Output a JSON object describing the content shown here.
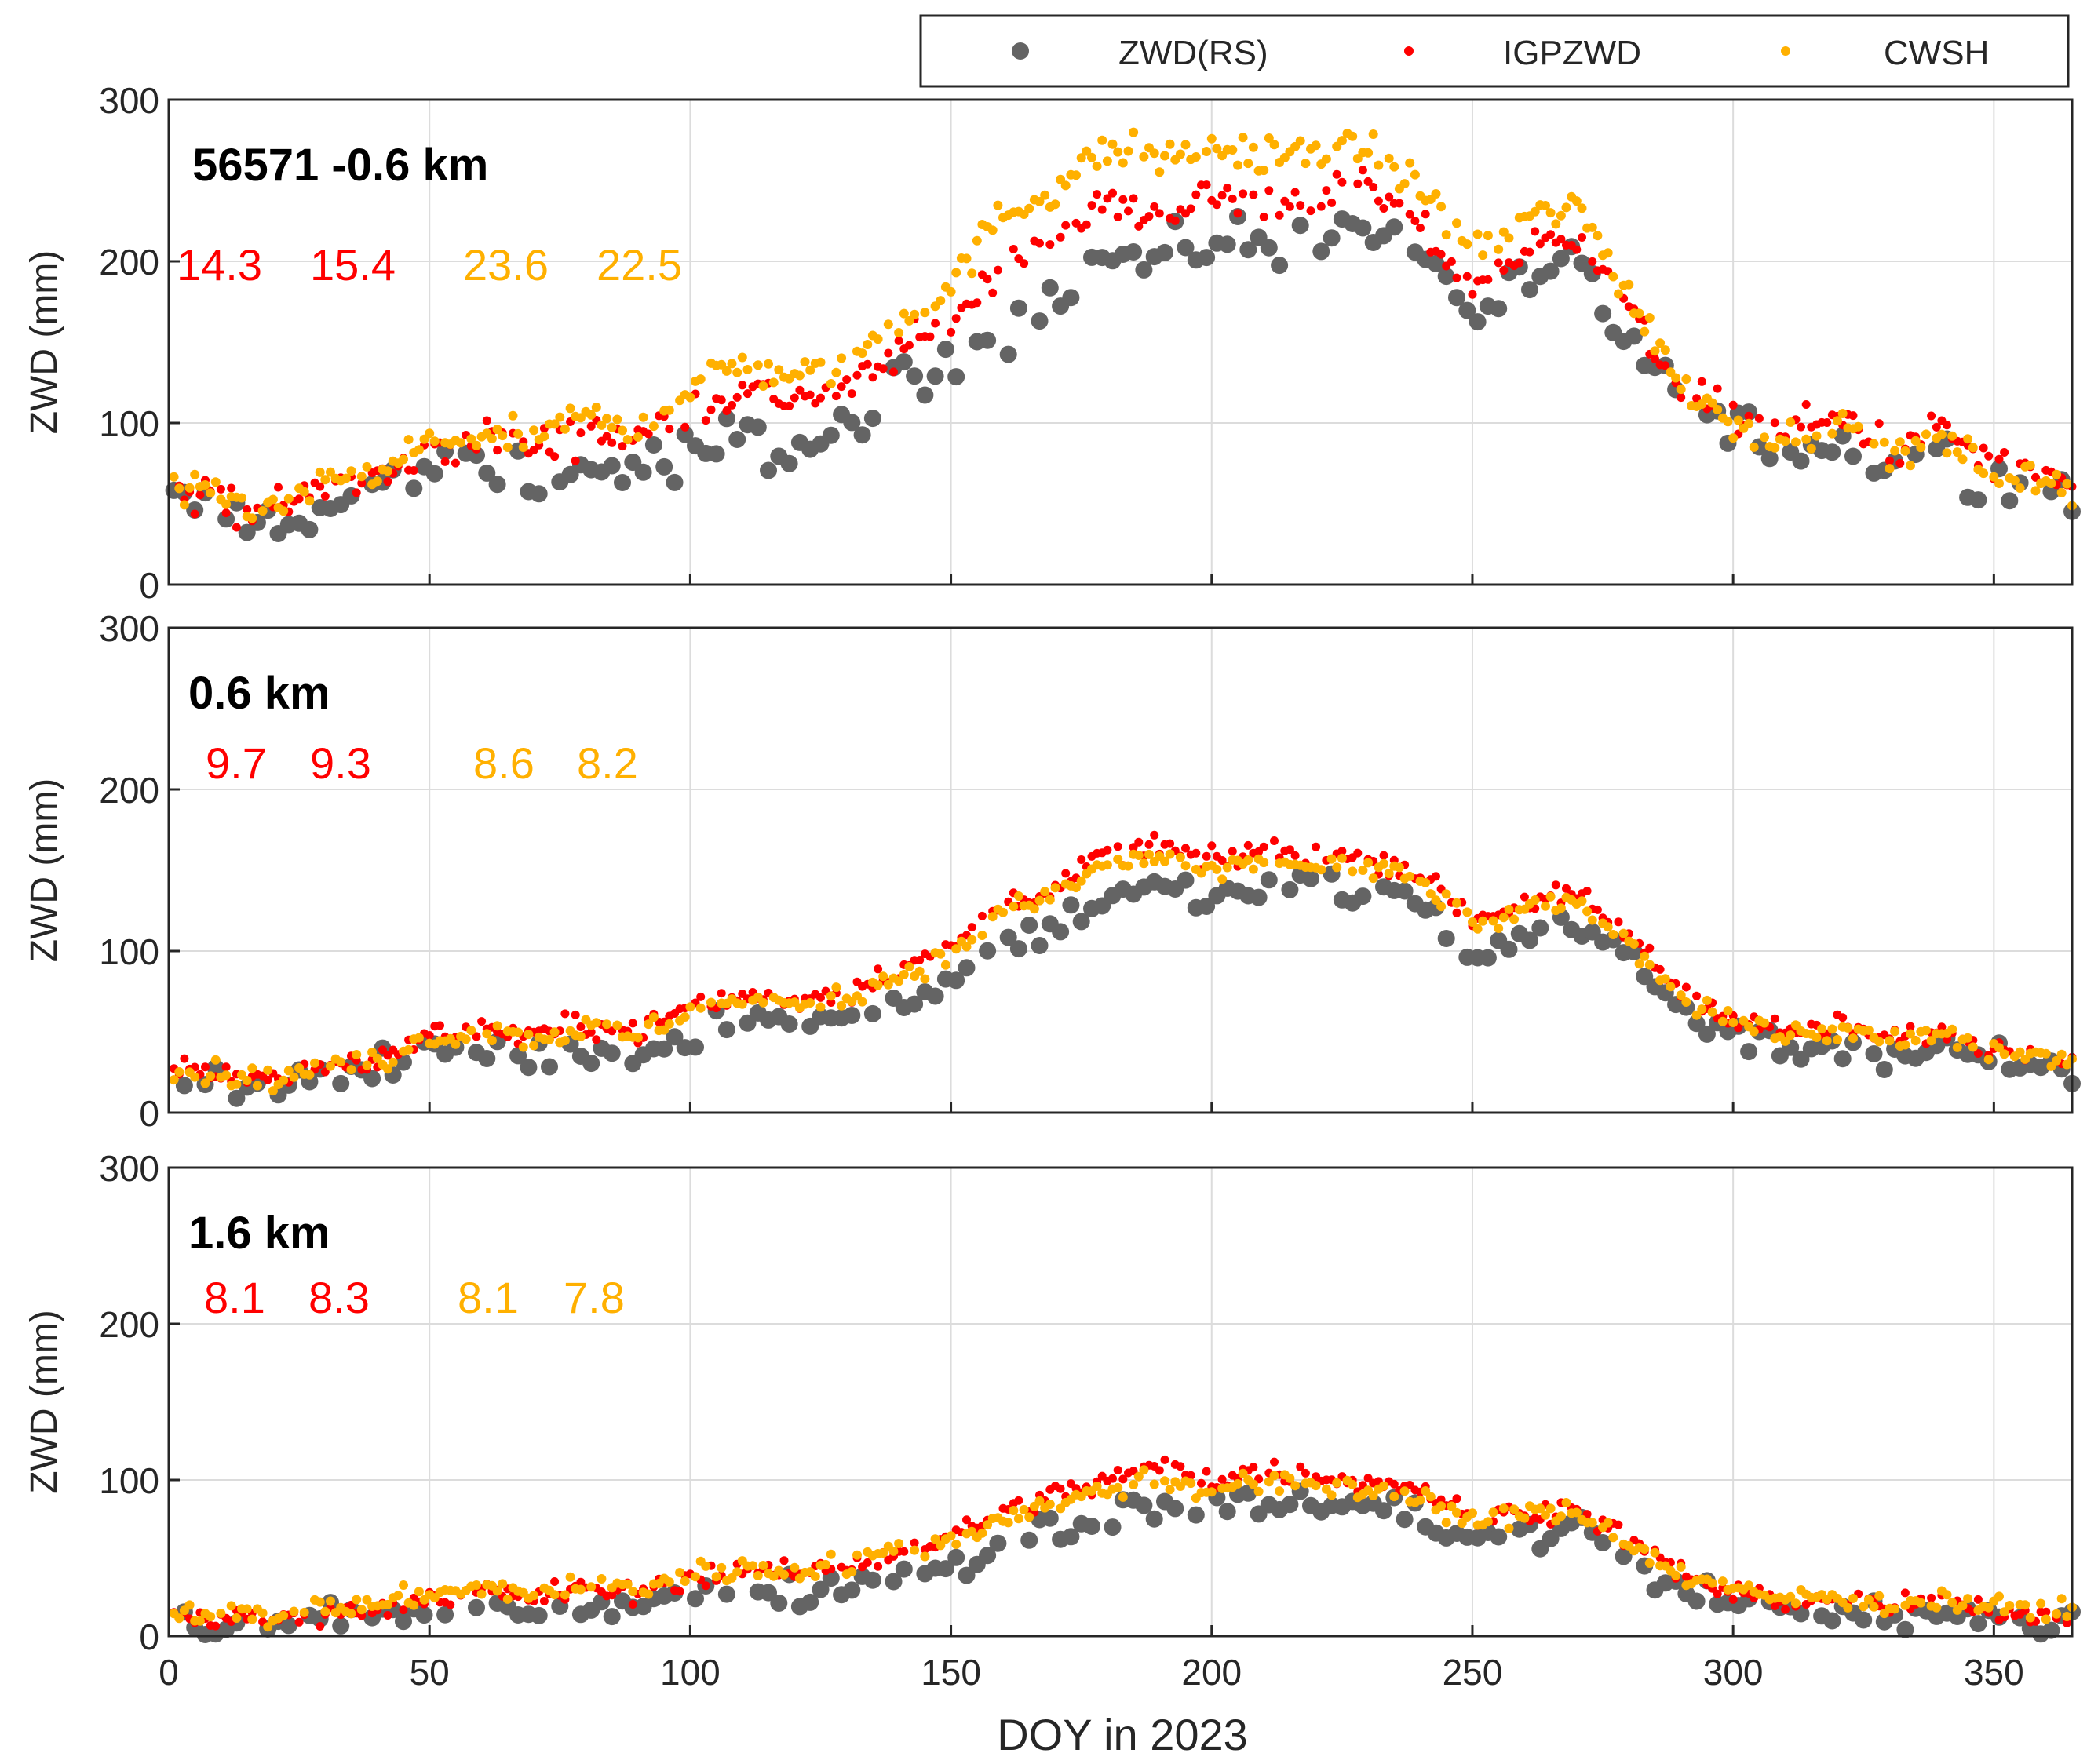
{
  "colors": {
    "rs": "#646464",
    "igp": "#ff0000",
    "cwsh": "#ffb000",
    "grid": "#dcdcdc",
    "axis": "#262626",
    "text": "#262626",
    "stats_igp": "#ff0000",
    "stats_cwsh": "#ffb000"
  },
  "legend": {
    "items": [
      {
        "label": "ZWD(RS)",
        "marker": "large-dot",
        "color": "#646464"
      },
      {
        "label": "IGPZWD",
        "marker": "small-dot",
        "color": "#ff0000"
      },
      {
        "label": "CWSH",
        "marker": "small-dot",
        "color": "#ffb000"
      }
    ]
  },
  "xaxis": {
    "label": "DOY in 2023",
    "range": [
      0,
      365
    ],
    "ticks": [
      0,
      50,
      100,
      150,
      200,
      250,
      300,
      350
    ],
    "tick_labels": [
      "0",
      "50",
      "100",
      "150",
      "200",
      "250",
      "300",
      "350"
    ]
  },
  "chart_data": [
    {
      "type": "scatter",
      "title": "56571 -0.6 km",
      "ylabel": "ZWD (mm)",
      "ylim": [
        0,
        300
      ],
      "yticks": [
        0,
        100,
        200,
        300
      ],
      "ytick_labels": [
        "0",
        "100",
        "200",
        "300"
      ],
      "stats": {
        "igp": [
          "14.3",
          "15.4"
        ],
        "cwsh": [
          "23.6",
          "22.5"
        ]
      },
      "x": [
        0,
        10,
        20,
        30,
        40,
        50,
        60,
        70,
        80,
        90,
        100,
        110,
        120,
        130,
        140,
        150,
        160,
        170,
        180,
        190,
        200,
        210,
        220,
        230,
        240,
        250,
        260,
        270,
        280,
        290,
        300,
        310,
        320,
        330,
        340,
        350,
        365
      ],
      "series": [
        {
          "name": "ZWD(RS)",
          "values": [
            50,
            45,
            38,
            48,
            55,
            70,
            75,
            65,
            70,
            72,
            80,
            90,
            85,
            95,
            120,
            135,
            160,
            180,
            205,
            200,
            215,
            210,
            220,
            225,
            205,
            170,
            185,
            195,
            150,
            110,
            95,
            85,
            90,
            75,
            80,
            65,
            55
          ]
        },
        {
          "name": "IGPZWD",
          "values": [
            55,
            52,
            45,
            60,
            65,
            80,
            90,
            85,
            95,
            90,
            110,
            120,
            115,
            120,
            145,
            160,
            200,
            215,
            235,
            230,
            240,
            235,
            240,
            245,
            220,
            185,
            205,
            220,
            170,
            120,
            105,
            95,
            105,
            85,
            95,
            75,
            65
          ]
        },
        {
          "name": "CWSH",
          "values": [
            55,
            55,
            45,
            62,
            68,
            88,
            92,
            90,
            105,
            95,
            125,
            135,
            130,
            135,
            165,
            185,
            230,
            245,
            270,
            265,
            270,
            265,
            270,
            270,
            245,
            205,
            225,
            235,
            180,
            125,
            100,
            90,
            100,
            80,
            90,
            70,
            60
          ]
        }
      ]
    },
    {
      "type": "scatter",
      "title": "0.6 km",
      "ylabel": "ZWD (mm)",
      "ylim": [
        0,
        300
      ],
      "yticks": [
        0,
        100,
        200,
        300
      ],
      "ytick_labels": [
        "0",
        "100",
        "200",
        "300"
      ],
      "stats": {
        "igp": [
          "9.7",
          "9.3"
        ],
        "cwsh": [
          "8.6",
          "8.2"
        ]
      },
      "x": [
        0,
        10,
        20,
        30,
        40,
        50,
        60,
        70,
        80,
        90,
        100,
        110,
        120,
        130,
        140,
        150,
        160,
        170,
        180,
        190,
        200,
        210,
        220,
        230,
        240,
        250,
        260,
        270,
        280,
        290,
        300,
        310,
        320,
        330,
        340,
        350,
        365
      ],
      "series": [
        {
          "name": "ZWD(RS)",
          "values": [
            20,
            18,
            15,
            22,
            25,
            38,
            40,
            35,
            38,
            36,
            50,
            60,
            55,
            58,
            70,
            80,
            105,
            115,
            135,
            140,
            130,
            140,
            140,
            135,
            130,
            100,
            110,
            120,
            95,
            65,
            50,
            40,
            45,
            35,
            40,
            30,
            25
          ]
        },
        {
          "name": "IGPZWD",
          "values": [
            28,
            25,
            20,
            30,
            33,
            48,
            52,
            48,
            55,
            50,
            65,
            72,
            70,
            75,
            90,
            100,
            130,
            140,
            160,
            165,
            155,
            162,
            160,
            158,
            150,
            120,
            130,
            135,
            110,
            75,
            60,
            50,
            55,
            45,
            50,
            40,
            35
          ]
        },
        {
          "name": "CWSH",
          "values": [
            26,
            24,
            20,
            28,
            32,
            46,
            50,
            46,
            52,
            48,
            62,
            70,
            66,
            72,
            86,
            96,
            124,
            134,
            154,
            158,
            148,
            155,
            154,
            150,
            144,
            115,
            125,
            130,
            105,
            72,
            58,
            48,
            52,
            42,
            48,
            38,
            32
          ]
        }
      ]
    },
    {
      "type": "scatter",
      "title": "1.6 km",
      "ylabel": "ZWD (mm)",
      "ylim": [
        0,
        300
      ],
      "yticks": [
        0,
        100,
        200,
        300
      ],
      "ytick_labels": [
        "0",
        "100",
        "200",
        "300"
      ],
      "stats": {
        "igp": [
          "8.1",
          "8.3"
        ],
        "cwsh": [
          "8.1",
          "7.8"
        ]
      },
      "x": [
        0,
        10,
        20,
        30,
        40,
        50,
        60,
        70,
        80,
        90,
        100,
        110,
        120,
        130,
        140,
        150,
        160,
        170,
        180,
        190,
        200,
        210,
        220,
        230,
        240,
        250,
        260,
        270,
        280,
        290,
        300,
        310,
        320,
        330,
        340,
        350,
        365
      ],
      "series": [
        {
          "name": "ZWD(RS)",
          "values": [
            8,
            6,
            5,
            10,
            12,
            18,
            20,
            18,
            20,
            18,
            28,
            32,
            30,
            32,
            40,
            45,
            60,
            70,
            78,
            85,
            80,
            85,
            85,
            82,
            78,
            60,
            65,
            70,
            50,
            30,
            20,
            15,
            18,
            12,
            15,
            10,
            8
          ]
        },
        {
          "name": "IGPZWD",
          "values": [
            14,
            12,
            10,
            16,
            18,
            26,
            28,
            26,
            30,
            28,
            38,
            42,
            40,
            44,
            55,
            62,
            80,
            90,
            100,
            108,
            100,
            105,
            102,
            100,
            95,
            75,
            80,
            82,
            62,
            40,
            28,
            22,
            25,
            18,
            22,
            16,
            14
          ]
        },
        {
          "name": "CWSH",
          "values": [
            16,
            15,
            12,
            18,
            20,
            28,
            30,
            28,
            32,
            30,
            40,
            44,
            42,
            46,
            55,
            60,
            76,
            86,
            94,
            100,
            94,
            98,
            96,
            94,
            90,
            72,
            78,
            80,
            60,
            40,
            30,
            24,
            26,
            20,
            24,
            18,
            16
          ]
        }
      ]
    }
  ]
}
